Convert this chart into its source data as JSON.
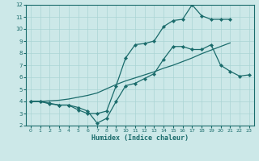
{
  "xlabel": "Humidex (Indice chaleur)",
  "xlim": [
    -0.5,
    23.5
  ],
  "ylim": [
    2,
    12
  ],
  "xticks": [
    0,
    1,
    2,
    3,
    4,
    5,
    6,
    7,
    8,
    9,
    10,
    11,
    12,
    13,
    14,
    15,
    16,
    17,
    18,
    19,
    20,
    21,
    22,
    23
  ],
  "yticks": [
    2,
    3,
    4,
    5,
    6,
    7,
    8,
    9,
    10,
    11,
    12
  ],
  "bg_color": "#cce8e8",
  "grid_color": "#aad4d4",
  "line_color": "#1a6b6b",
  "line1_x": [
    0,
    1,
    2,
    3,
    4,
    5,
    6,
    7,
    8,
    9,
    10,
    11,
    12,
    13,
    14,
    15,
    16,
    17,
    18,
    19,
    20,
    21,
    22,
    23
  ],
  "line1_y": [
    4.0,
    4.0,
    3.85,
    3.7,
    3.7,
    3.5,
    3.2,
    2.2,
    2.6,
    4.0,
    5.3,
    5.5,
    5.9,
    6.3,
    7.5,
    8.55,
    8.55,
    8.3,
    8.3,
    8.7,
    7.0,
    6.5,
    6.1,
    6.2
  ],
  "line2_x": [
    0,
    1,
    2,
    3,
    4,
    5,
    6,
    7,
    8,
    9,
    10,
    11,
    12,
    13,
    14,
    15,
    16,
    17,
    18,
    19,
    20,
    21
  ],
  "line2_y": [
    4.0,
    4.0,
    3.8,
    3.7,
    3.7,
    3.3,
    3.0,
    3.0,
    3.2,
    5.3,
    7.6,
    8.7,
    8.8,
    9.0,
    10.2,
    10.7,
    10.8,
    12.0,
    11.1,
    10.8,
    10.8,
    10.8
  ],
  "line3_x": [
    0,
    1,
    2,
    3,
    4,
    5,
    6,
    7,
    8,
    9,
    10,
    11,
    12,
    13,
    14,
    15,
    16,
    17,
    18,
    19,
    20,
    21
  ],
  "line3_y": [
    4.0,
    4.0,
    4.05,
    4.1,
    4.2,
    4.35,
    4.5,
    4.7,
    5.05,
    5.4,
    5.7,
    5.95,
    6.2,
    6.45,
    6.75,
    7.0,
    7.3,
    7.6,
    7.95,
    8.25,
    8.55,
    8.85
  ]
}
